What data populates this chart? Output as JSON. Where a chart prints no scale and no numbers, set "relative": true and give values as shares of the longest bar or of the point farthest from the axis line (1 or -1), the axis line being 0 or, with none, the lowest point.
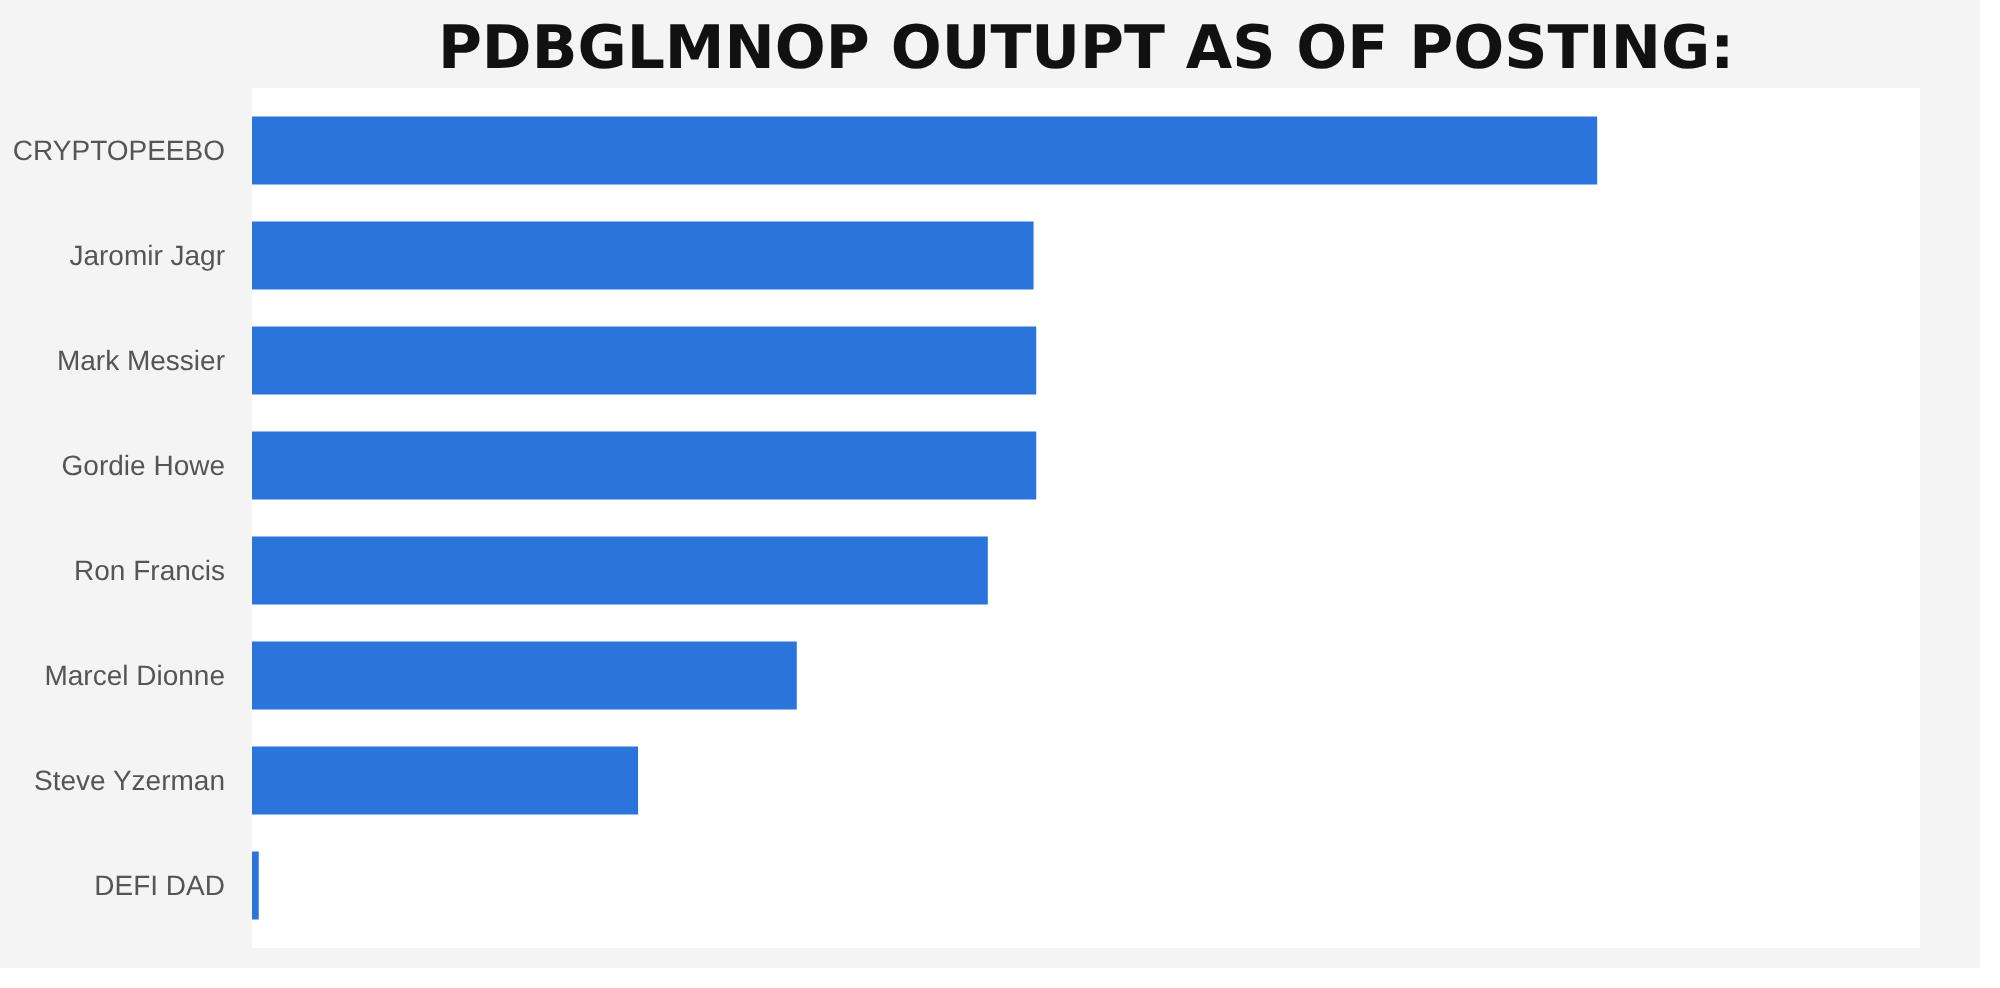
{
  "chart_data": {
    "type": "bar",
    "orientation": "horizontal",
    "relative": true,
    "title": "PDBGLMNOP OUTUPT AS OF POSTING:",
    "categories": [
      "CRYPTOPEEBO",
      "Jaromir Jagr",
      "Mark Messier",
      "Gordie Howe",
      "Ron Francis",
      "Marcel Dionne",
      "Steve Yzerman",
      "DEFI DAD"
    ],
    "values": [
      1,
      0.581,
      0.583,
      0.583,
      0.547,
      0.405,
      0.287,
      0.005
    ],
    "color": "#2a74db"
  }
}
